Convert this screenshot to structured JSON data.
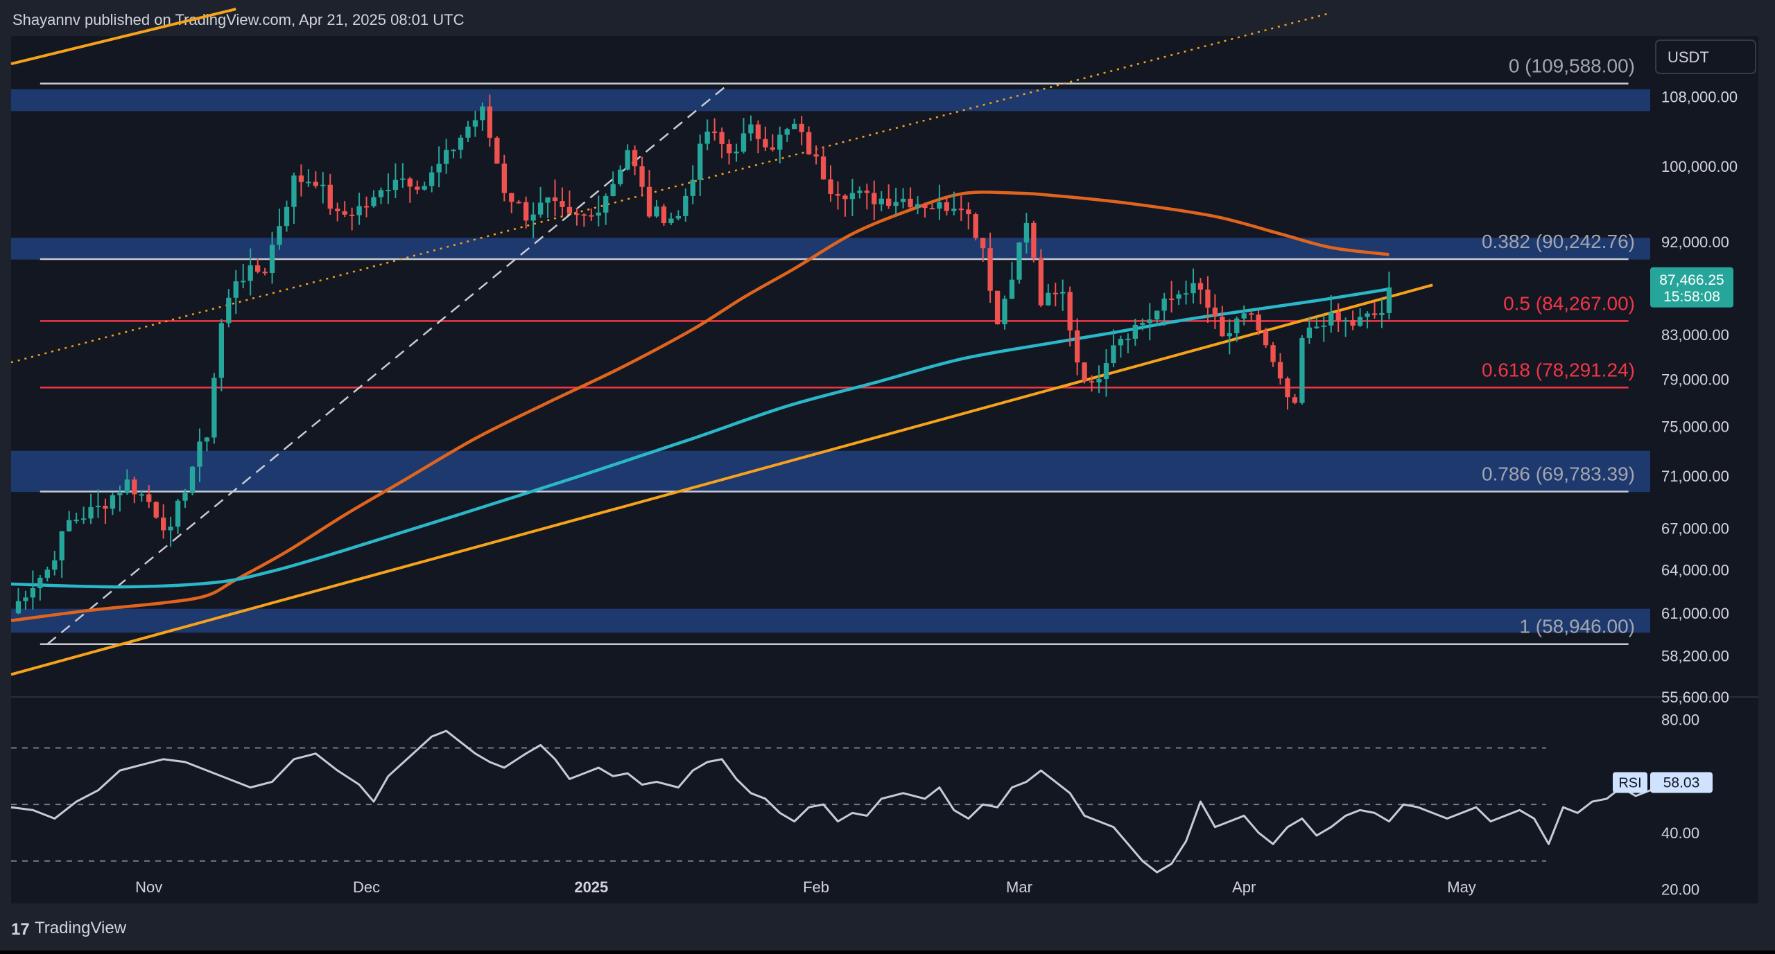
{
  "header": {
    "published": "Shayannv published on TradingView.com, Apr 21, 2025 08:01 UTC"
  },
  "footer": {
    "brand": "TradingView",
    "logo_text": "17"
  },
  "colors": {
    "bg": "#131722",
    "outer": "#1e222d",
    "zone": "#1f3d75",
    "candle_up": "#26a69a",
    "candle_down": "#ef5350",
    "ma_long": "#2ab7c9",
    "ma_short": "#e0641e",
    "trendline": "#f7a21b",
    "fib_white": "#c8cbd0",
    "fib_red": "#f23645",
    "rsi_line": "#c4ccd8"
  },
  "chart_data": {
    "type": "candlestick",
    "symbol_currency": "USDT",
    "y_axis": {
      "scale": "log",
      "range": [
        55600,
        115500
      ],
      "ticks": [
        "108,000.00",
        "100,000.00",
        "92,000.00",
        "83,000.00",
        "79,000.00",
        "75,000.00",
        "71,000.00",
        "67,000.00",
        "64,000.00",
        "61,000.00",
        "58,200.00",
        "55,600.00"
      ]
    },
    "x_axis": {
      "range": [
        "2024-10-13",
        "2025-05-27"
      ],
      "ticks": [
        {
          "label": "Nov",
          "date": "2024-11-01",
          "bold": false
        },
        {
          "label": "Dec",
          "date": "2024-12-01",
          "bold": false
        },
        {
          "label": "2025",
          "date": "2025-01-01",
          "bold": true
        },
        {
          "label": "Feb",
          "date": "2025-02-01",
          "bold": false
        },
        {
          "label": "Mar",
          "date": "2025-03-01",
          "bold": false
        },
        {
          "label": "Apr",
          "date": "2025-04-01",
          "bold": false
        },
        {
          "label": "May",
          "date": "2025-05-01",
          "bold": false
        }
      ]
    },
    "last_price": {
      "value": 87466.25,
      "label": "87,466.25",
      "countdown": "15:58:08"
    },
    "fib_levels": [
      {
        "label": "0 (109,588.00)",
        "value": 109588,
        "color": "white"
      },
      {
        "label": "0.382 (90,242.76)",
        "value": 90242.76,
        "color": "white"
      },
      {
        "label": "0.5 (84,267.00)",
        "value": 84267,
        "color": "red"
      },
      {
        "label": "0.618 (78,291.24)",
        "value": 78291.24,
        "color": "red"
      },
      {
        "label": "0.786 (69,783.39)",
        "value": 69783.39,
        "color": "white"
      },
      {
        "label": "1 (58,946.00)",
        "value": 58946,
        "color": "white"
      }
    ],
    "zones": [
      {
        "from": 106300,
        "to": 108900
      },
      {
        "from": 90200,
        "to": 92400
      },
      {
        "from": 69750,
        "to": 73000
      },
      {
        "from": 59700,
        "to": 61300
      }
    ],
    "trendlines": [
      {
        "style": "solid",
        "color": "trendline",
        "points": [
          [
            "2024-10-13",
            57000
          ],
          [
            "2025-04-27",
            87700
          ]
        ]
      },
      {
        "style": "solid",
        "color": "trendline",
        "points": [
          [
            "2024-10-13",
            112000
          ],
          [
            "2024-11-13",
            119000
          ]
        ]
      },
      {
        "style": "dotted",
        "color": "trendline",
        "points": [
          [
            "2024-10-13",
            80500
          ],
          [
            "2025-04-13",
            118500
          ]
        ]
      },
      {
        "style": "dashed",
        "color": "fib_white",
        "points": [
          [
            "2024-10-18",
            58946
          ],
          [
            "2025-01-20",
            109588
          ]
        ]
      }
    ],
    "moving_averages": [
      {
        "color": "ma_short",
        "points": [
          [
            "2024-10-13",
            60500
          ],
          [
            "2024-10-24",
            61200
          ],
          [
            "2024-11-03",
            61700
          ],
          [
            "2024-11-09",
            62200
          ],
          [
            "2024-11-13",
            63300
          ],
          [
            "2024-11-20",
            65300
          ],
          [
            "2024-11-28",
            68000
          ],
          [
            "2024-12-06",
            70600
          ],
          [
            "2024-12-16",
            74000
          ],
          [
            "2024-12-26",
            77000
          ],
          [
            "2025-01-05",
            80000
          ],
          [
            "2025-01-15",
            83500
          ],
          [
            "2025-01-22",
            86500
          ],
          [
            "2025-01-29",
            89300
          ],
          [
            "2025-02-06",
            92800
          ],
          [
            "2025-02-14",
            95300
          ],
          [
            "2025-02-21",
            97000
          ],
          [
            "2025-02-28",
            97100
          ],
          [
            "2025-03-06",
            96800
          ],
          [
            "2025-03-16",
            96000
          ],
          [
            "2025-03-28",
            94600
          ],
          [
            "2025-04-06",
            92800
          ],
          [
            "2025-04-13",
            91400
          ],
          [
            "2025-04-21",
            90700
          ]
        ]
      },
      {
        "color": "ma_long",
        "points": [
          [
            "2024-10-13",
            63000
          ],
          [
            "2024-10-28",
            62800
          ],
          [
            "2024-11-10",
            63100
          ],
          [
            "2024-11-18",
            63900
          ],
          [
            "2024-11-28",
            65400
          ],
          [
            "2024-12-13",
            67900
          ],
          [
            "2024-12-31",
            71100
          ],
          [
            "2025-01-15",
            74000
          ],
          [
            "2025-01-28",
            76700
          ],
          [
            "2025-02-09",
            78700
          ],
          [
            "2025-02-21",
            80800
          ],
          [
            "2025-03-05",
            82200
          ],
          [
            "2025-03-14",
            83200
          ],
          [
            "2025-03-24",
            84400
          ],
          [
            "2025-04-03",
            85400
          ],
          [
            "2025-04-12",
            86300
          ],
          [
            "2025-04-21",
            87300
          ]
        ]
      }
    ],
    "candle_anchors": [
      [
        "2024-10-13",
        61000
      ],
      [
        "2024-10-15",
        62500
      ],
      [
        "2024-10-18",
        64000
      ],
      [
        "2024-10-21",
        67500
      ],
      [
        "2024-10-25",
        68500
      ],
      [
        "2024-10-29",
        70500
      ],
      [
        "2024-11-01",
        69000
      ],
      [
        "2024-11-04",
        66600
      ],
      [
        "2024-11-05",
        68500
      ],
      [
        "2024-11-07",
        71800
      ],
      [
        "2024-11-09",
        74500
      ],
      [
        "2024-11-11",
        84000
      ],
      [
        "2024-11-13",
        88400
      ],
      [
        "2024-11-17",
        89300
      ],
      [
        "2024-11-21",
        98500
      ],
      [
        "2024-11-24",
        98600
      ],
      [
        "2024-11-27",
        94500
      ],
      [
        "2024-12-02",
        96200
      ],
      [
        "2024-12-05",
        99000
      ],
      [
        "2024-12-09",
        98000
      ],
      [
        "2024-12-12",
        101000
      ],
      [
        "2024-12-15",
        104500
      ],
      [
        "2024-12-17",
        106200
      ],
      [
        "2024-12-20",
        97500
      ],
      [
        "2024-12-23",
        94800
      ],
      [
        "2024-12-26",
        96000
      ],
      [
        "2024-12-29",
        94300
      ],
      [
        "2025-01-01",
        94600
      ],
      [
        "2025-01-04",
        98300
      ],
      [
        "2025-01-06",
        102000
      ],
      [
        "2025-01-09",
        95000
      ],
      [
        "2025-01-13",
        94500
      ],
      [
        "2025-01-17",
        104000
      ],
      [
        "2025-01-20",
        101500
      ],
      [
        "2025-01-23",
        104000
      ],
      [
        "2025-01-26",
        102500
      ],
      [
        "2025-01-29",
        104500
      ],
      [
        "2025-02-01",
        100500
      ],
      [
        "2025-02-03",
        97800
      ],
      [
        "2025-02-08",
        96500
      ],
      [
        "2025-02-13",
        96500
      ],
      [
        "2025-02-18",
        95600
      ],
      [
        "2025-02-21",
        96200
      ],
      [
        "2025-02-24",
        91500
      ],
      [
        "2025-02-26",
        84000
      ],
      [
        "2025-03-02",
        94000
      ],
      [
        "2025-03-04",
        86000
      ],
      [
        "2025-03-07",
        86800
      ],
      [
        "2025-03-09",
        80700
      ],
      [
        "2025-03-11",
        78200
      ],
      [
        "2025-03-14",
        82500
      ],
      [
        "2025-03-19",
        84600
      ],
      [
        "2025-03-24",
        87500
      ],
      [
        "2025-03-26",
        87000
      ],
      [
        "2025-03-29",
        82600
      ],
      [
        "2025-04-02",
        85000
      ],
      [
        "2025-04-06",
        78500
      ],
      [
        "2025-04-08",
        76300
      ],
      [
        "2025-04-09",
        82500
      ],
      [
        "2025-04-12",
        84500
      ],
      [
        "2025-04-16",
        84000
      ],
      [
        "2025-04-20",
        85100
      ],
      [
        "2025-04-21",
        87466
      ]
    ],
    "rsi": {
      "label": "RSI",
      "value": "58.03",
      "ticks": [
        "80.00",
        "40.00",
        "20.00"
      ],
      "range": [
        15,
        88
      ],
      "bands": [
        70,
        50,
        30
      ],
      "points": [
        [
          0,
          49
        ],
        [
          3,
          48
        ],
        [
          6,
          45
        ],
        [
          9,
          51
        ],
        [
          12,
          55
        ],
        [
          15,
          62
        ],
        [
          18,
          64
        ],
        [
          21,
          66
        ],
        [
          24,
          65
        ],
        [
          27,
          62
        ],
        [
          30,
          59
        ],
        [
          33,
          56
        ],
        [
          36,
          58
        ],
        [
          39,
          66
        ],
        [
          42,
          68
        ],
        [
          45,
          62
        ],
        [
          48,
          57
        ],
        [
          50,
          51
        ],
        [
          52,
          60
        ],
        [
          55,
          67
        ],
        [
          58,
          74
        ],
        [
          60,
          76
        ],
        [
          62,
          72
        ],
        [
          64,
          68
        ],
        [
          66,
          65
        ],
        [
          68,
          63
        ],
        [
          71,
          68
        ],
        [
          73,
          71
        ],
        [
          75,
          66
        ],
        [
          77,
          59
        ],
        [
          79,
          61
        ],
        [
          81,
          63
        ],
        [
          83,
          60
        ],
        [
          85,
          61
        ],
        [
          87,
          57
        ],
        [
          89,
          58
        ],
        [
          92,
          56
        ],
        [
          94,
          62
        ],
        [
          96,
          65
        ],
        [
          98,
          66
        ],
        [
          100,
          59
        ],
        [
          102,
          54
        ],
        [
          104,
          52
        ],
        [
          106,
          47
        ],
        [
          108,
          44
        ],
        [
          110,
          49
        ],
        [
          112,
          50
        ],
        [
          114,
          44
        ],
        [
          116,
          47
        ],
        [
          118,
          46
        ],
        [
          120,
          52
        ],
        [
          123,
          54
        ],
        [
          126,
          52
        ],
        [
          128,
          56
        ],
        [
          130,
          48
        ],
        [
          132,
          45
        ],
        [
          134,
          50
        ],
        [
          136,
          49
        ],
        [
          138,
          56
        ],
        [
          140,
          58
        ],
        [
          142,
          62
        ],
        [
          144,
          58
        ],
        [
          146,
          54
        ],
        [
          148,
          46
        ],
        [
          150,
          44
        ],
        [
          152,
          42
        ],
        [
          154,
          36
        ],
        [
          156,
          30
        ],
        [
          158,
          26
        ],
        [
          160,
          29
        ],
        [
          162,
          37
        ],
        [
          164,
          51
        ],
        [
          166,
          42
        ],
        [
          168,
          44
        ],
        [
          170,
          46
        ],
        [
          172,
          40
        ],
        [
          174,
          36
        ],
        [
          176,
          42
        ],
        [
          178,
          45
        ],
        [
          180,
          39
        ],
        [
          182,
          42
        ],
        [
          184,
          46
        ],
        [
          186,
          48
        ],
        [
          188,
          47
        ],
        [
          190,
          44
        ],
        [
          192,
          50
        ],
        [
          194,
          49
        ],
        [
          196,
          47
        ],
        [
          198,
          45
        ],
        [
          200,
          47
        ],
        [
          202,
          49
        ],
        [
          204,
          44
        ],
        [
          206,
          46
        ],
        [
          208,
          48
        ],
        [
          210,
          45
        ],
        [
          212,
          36
        ],
        [
          214,
          49
        ],
        [
          216,
          47
        ],
        [
          218,
          51
        ],
        [
          220,
          52
        ],
        [
          222,
          56
        ],
        [
          224,
          53
        ],
        [
          226,
          55
        ],
        [
          228,
          56
        ],
        [
          230,
          55
        ],
        [
          232,
          58
        ]
      ]
    }
  }
}
